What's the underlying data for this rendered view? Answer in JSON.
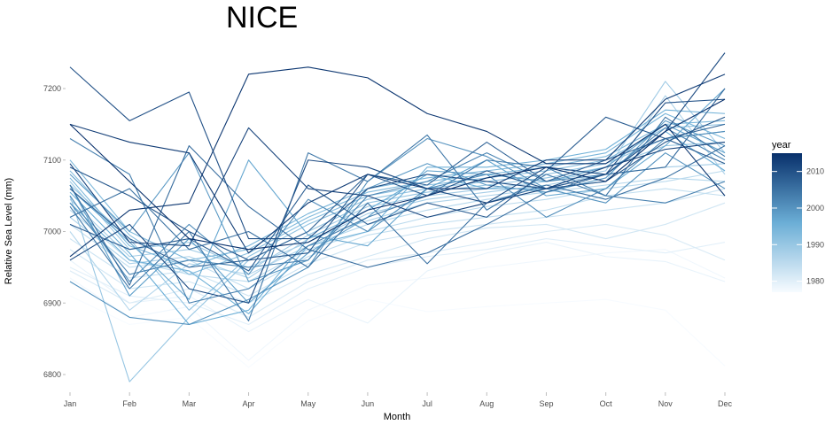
{
  "chart_data": {
    "type": "line",
    "title": "NICE",
    "xlabel": "Month",
    "ylabel": "Relative Sea Level (mm)",
    "categories": [
      "Jan",
      "Feb",
      "Mar",
      "Apr",
      "May",
      "Jun",
      "Jul",
      "Aug",
      "Sep",
      "Oct",
      "Nov",
      "Dec"
    ],
    "yticks": [
      6800,
      6900,
      7000,
      7100,
      7200
    ],
    "ylim": [
      6780,
      7255
    ],
    "grid": false,
    "legend": {
      "title": "year",
      "position": "right",
      "ticks": [
        1980,
        1990,
        2000,
        2010
      ],
      "range": [
        1977,
        2015
      ],
      "colors": {
        "low": "#f7fbff",
        "mid": "#6baed6",
        "high": "#08306b"
      }
    },
    "series": [
      {
        "year": 1977,
        "values": [
          6910,
          6870,
          6880,
          6810,
          6875,
          6905,
          6888,
          6895,
          6900,
          6905,
          6890,
          6812
        ]
      },
      {
        "year": 1978,
        "values": [
          6935,
          6880,
          6895,
          6820,
          6890,
          6925,
          6935,
          6950,
          6960,
          6970,
          6975,
          6935
        ]
      },
      {
        "year": 1979,
        "values": [
          6960,
          6900,
          6910,
          6860,
          6905,
          6872,
          6945,
          6970,
          6985,
          6965,
          6958,
          6930
        ]
      },
      {
        "year": 1980,
        "values": [
          6950,
          6910,
          6900,
          6870,
          6920,
          6950,
          6965,
          6975,
          6990,
          6980,
          6970,
          6985
        ]
      },
      {
        "year": 1981,
        "values": [
          6945,
          6900,
          6920,
          6880,
          6930,
          6960,
          6970,
          6985,
          7000,
          7010,
          6995,
          6960
        ]
      },
      {
        "year": 1982,
        "values": [
          6975,
          6920,
          6930,
          6900,
          6940,
          6965,
          6990,
          7005,
          7010,
          6990,
          7010,
          7040
        ]
      },
      {
        "year": 1983,
        "values": [
          6990,
          6935,
          6945,
          6910,
          6955,
          6985,
          7000,
          7010,
          7020,
          7030,
          7040,
          7060
        ]
      },
      {
        "year": 1984,
        "values": [
          7010,
          6950,
          6960,
          6920,
          6965,
          6995,
          7010,
          7020,
          7030,
          7050,
          7060,
          7050
        ]
      },
      {
        "year": 1985,
        "values": [
          7030,
          6960,
          6940,
          6930,
          6975,
          7000,
          7020,
          7035,
          7045,
          7060,
          7070,
          7085
        ]
      },
      {
        "year": 1986,
        "values": [
          7000,
          6890,
          6955,
          6940,
          6980,
          7010,
          7030,
          7045,
          7055,
          7065,
          7075,
          7070
        ]
      },
      {
        "year": 1987,
        "values": [
          7020,
          6955,
          6965,
          6935,
          6990,
          7015,
          7040,
          7050,
          7060,
          7070,
          7190,
          7080
        ]
      },
      {
        "year": 1988,
        "values": [
          7045,
          6965,
          6975,
          6950,
          6985,
          7025,
          7045,
          7055,
          7065,
          7080,
          7090,
          7095
        ]
      },
      {
        "year": 1989,
        "values": [
          7070,
          6975,
          6985,
          6945,
          6995,
          7035,
          7050,
          7060,
          7070,
          7085,
          7210,
          7110
        ]
      },
      {
        "year": 1990,
        "values": [
          7050,
          6790,
          6880,
          6960,
          7000,
          7040,
          7055,
          7065,
          7075,
          7090,
          7120,
          7125
        ]
      },
      {
        "year": 1991,
        "values": [
          7065,
          6990,
          6890,
          6965,
          7010,
          7045,
          7060,
          7070,
          7080,
          7095,
          7130,
          7140
        ]
      },
      {
        "year": 1992,
        "values": [
          7085,
          6995,
          6940,
          6970,
          7015,
          7050,
          7065,
          7075,
          7085,
          7100,
          7145,
          7150
        ]
      },
      {
        "year": 1993,
        "values": [
          7100,
          7000,
          6960,
          6975,
          7020,
          7055,
          7070,
          7080,
          7090,
          7105,
          7150,
          7155
        ]
      },
      {
        "year": 1994,
        "values": [
          7075,
          6980,
          6950,
          6980,
          7025,
          7060,
          7075,
          7085,
          7095,
          7110,
          7165,
          7130
        ]
      },
      {
        "year": 1995,
        "values": [
          7040,
          6960,
          6945,
          6885,
          6980,
          7000,
          7090,
          7090,
          7100,
          7115,
          7170,
          7165
        ]
      },
      {
        "year": 1996,
        "values": [
          7055,
          6970,
          6870,
          6890,
          6990,
          7030,
          7080,
          7060,
          7060,
          7080,
          7140,
          7085
        ]
      },
      {
        "year": 1997,
        "values": [
          7060,
          6985,
          6905,
          7100,
          6995,
          6980,
          7060,
          7100,
          7050,
          7060,
          7120,
          7200
        ]
      },
      {
        "year": 1998,
        "values": [
          7065,
          6910,
          6990,
          6900,
          6970,
          7020,
          7085,
          7080,
          7070,
          7090,
          7150,
          7110
        ]
      },
      {
        "year": 1999,
        "values": [
          7080,
          7000,
          7110,
          6930,
          6960,
          7060,
          7095,
          7065,
          7055,
          7075,
          7155,
          7120
        ]
      },
      {
        "year": 2000,
        "values": [
          6930,
          6880,
          6870,
          6905,
          6950,
          7070,
          7130,
          7105,
          7060,
          7040,
          7110,
          7060
        ]
      },
      {
        "year": 2001,
        "values": [
          7050,
          6930,
          7010,
          6940,
          7045,
          7000,
          7060,
          7080,
          7020,
          7060,
          7130,
          7140
        ]
      },
      {
        "year": 2002,
        "values": [
          7040,
          6940,
          6960,
          6950,
          6960,
          7050,
          7070,
          7110,
          7070,
          7080,
          7145,
          7100
        ]
      },
      {
        "year": 2003,
        "values": [
          7130,
          7080,
          6900,
          6920,
          6980,
          7020,
          7050,
          7100,
          7090,
          7050,
          7040,
          7070
        ]
      },
      {
        "year": 2004,
        "values": [
          7035,
          6920,
          7000,
          6875,
          7110,
          7070,
          7135,
          7030,
          7080,
          7050,
          7160,
          7105
        ]
      },
      {
        "year": 2005,
        "values": [
          7020,
          7060,
          6975,
          7000,
          6950,
          7040,
          6955,
          7040,
          7065,
          7045,
          7075,
          7120
        ]
      },
      {
        "year": 2006,
        "values": [
          7065,
          6925,
          7120,
          7035,
          6975,
          6950,
          6970,
          7010,
          7055,
          7080,
          7090,
          7200
        ]
      },
      {
        "year": 2007,
        "values": [
          7060,
          6990,
          6950,
          6960,
          7000,
          7080,
          7065,
          7125,
          7070,
          7100,
          7130,
          7150
        ]
      },
      {
        "year": 2008,
        "values": [
          7010,
          6975,
          6990,
          6945,
          7065,
          7010,
          7040,
          7020,
          7085,
          7160,
          7130,
          7095
        ]
      },
      {
        "year": 2009,
        "values": [
          7090,
          7050,
          7000,
          6960,
          6970,
          7080,
          7050,
          7085,
          7060,
          7070,
          7125,
          7160
        ]
      },
      {
        "year": 2010,
        "values": [
          7230,
          7155,
          7195,
          6990,
          6990,
          7060,
          7080,
          7070,
          7060,
          7080,
          7180,
          7185
        ]
      },
      {
        "year": 2011,
        "values": [
          6960,
          7010,
          6920,
          6900,
          7100,
          7090,
          7060,
          7040,
          7090,
          7080,
          7140,
          7250
        ]
      },
      {
        "year": 2012,
        "values": [
          7095,
          6985,
          6980,
          7145,
          7060,
          7050,
          7020,
          7040,
          7060,
          7090,
          7115,
          7125
        ]
      },
      {
        "year": 2013,
        "values": [
          7150,
          7125,
          7110,
          6970,
          7040,
          7080,
          7060,
          7060,
          7100,
          7100,
          7185,
          7220
        ]
      },
      {
        "year": 2014,
        "values": [
          6965,
          7030,
          7040,
          7220,
          7230,
          7215,
          7165,
          7140,
          7095,
          7095,
          7150,
          7050
        ]
      },
      {
        "year": 2015,
        "values": [
          7150,
          7070,
          6990,
          6975,
          6985,
          7030,
          7050,
          7075,
          7090,
          7070,
          7140,
          7185
        ]
      }
    ]
  }
}
